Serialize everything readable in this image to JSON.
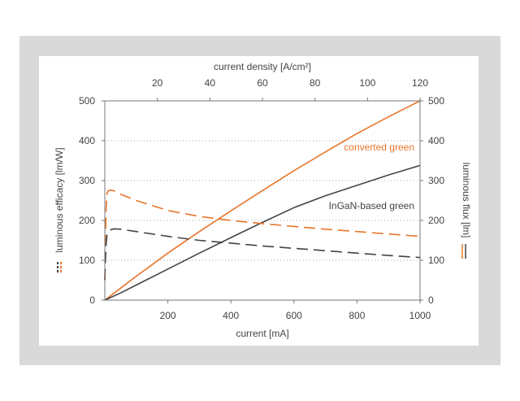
{
  "chart_data": {
    "type": "line",
    "xlabel": "current [mA]",
    "x2label": "current density [A/cm²]",
    "ylabel": "luminous efficacy [lm/W]",
    "y2label": "luminous flux [lm]",
    "xlim": [
      0,
      1000
    ],
    "x2lim": [
      0,
      120
    ],
    "ylim": [
      0,
      500
    ],
    "y2lim": [
      0,
      500
    ],
    "x_ticks": [
      "200",
      "400",
      "600",
      "800",
      "1000"
    ],
    "x2_ticks": [
      "20",
      "40",
      "60",
      "80",
      "100",
      "120"
    ],
    "y_ticks": [
      "0",
      "100",
      "200",
      "300",
      "400",
      "500"
    ],
    "y2_ticks": [
      "0",
      "100",
      "200",
      "300",
      "400",
      "500"
    ],
    "grid": "horizontal dotted",
    "annotations": [
      {
        "text": "converted green",
        "color": "#e8752a"
      },
      {
        "text": "InGaN-based green",
        "color": "#444444"
      }
    ],
    "colors": {
      "orange": "#e8752a",
      "gray": "#444444"
    },
    "series": [
      {
        "color": "#e8752a",
        "dash": false,
        "axis": "right",
        "x": [
          0,
          50,
          100,
          200,
          300,
          400,
          500,
          600,
          700,
          800,
          900,
          1000
        ],
        "y": [
          0,
          30,
          60,
          118,
          172,
          224,
          275,
          325,
          372,
          418,
          460,
          500
        ]
      },
      {
        "color": "#444444",
        "dash": false,
        "axis": "right",
        "x": [
          0,
          50,
          100,
          200,
          300,
          400,
          500,
          600,
          700,
          800,
          900,
          1000
        ],
        "y": [
          0,
          18,
          38,
          78,
          118,
          157,
          195,
          232,
          262,
          288,
          314,
          338
        ]
      },
      {
        "color": "#e8752a",
        "dash": true,
        "axis": "left",
        "x": [
          0,
          2,
          4,
          7,
          12,
          20,
          30,
          50,
          100,
          200,
          300,
          400,
          500,
          600,
          700,
          800,
          900,
          1000
        ],
        "y": [
          50,
          150,
          230,
          268,
          275,
          276,
          274,
          266,
          250,
          225,
          210,
          200,
          192,
          185,
          178,
          172,
          166,
          160
        ]
      },
      {
        "color": "#444444",
        "dash": true,
        "axis": "left",
        "x": [
          0,
          2,
          4,
          7,
          12,
          20,
          30,
          50,
          100,
          200,
          300,
          400,
          500,
          600,
          700,
          800,
          900,
          1000
        ],
        "y": [
          50,
          100,
          140,
          163,
          172,
          177,
          179,
          178,
          172,
          160,
          150,
          143,
          136,
          130,
          124,
          118,
          112,
          107
        ]
      }
    ]
  }
}
